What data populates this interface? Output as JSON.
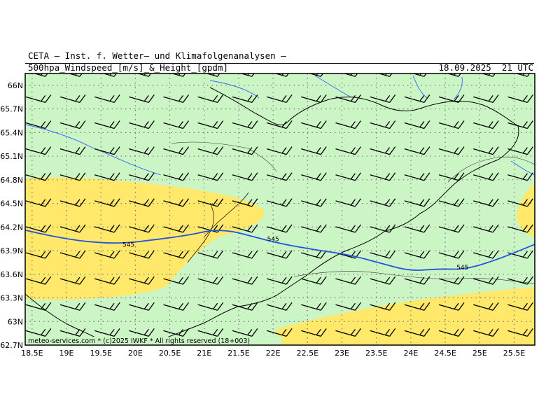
{
  "header": {
    "title": "CETA – Inst. f. Wetter– und Klimafolgenanalysen –",
    "subtitle": "500hpa_Windspeed_[m/s]_&_Height_[gpdm]",
    "valid_time": "18.09.2025  21 UTC"
  },
  "credit": "meteo-services.com * (c)2025 IWKF * All rights reserved (18+003)",
  "map": {
    "lon_range": [
      18.4,
      25.8
    ],
    "lat_range": [
      62.7,
      66.15
    ],
    "lon_ticks": [
      "18.5E",
      "19E",
      "19.5E",
      "20E",
      "20.5E",
      "21E",
      "21.5E",
      "22E",
      "22.5E",
      "23E",
      "23.5E",
      "24E",
      "24.5E",
      "25E",
      "25.5E"
    ],
    "lon_tick_values": [
      18.5,
      19,
      19.5,
      20,
      20.5,
      21,
      21.5,
      22,
      22.5,
      23,
      23.5,
      24,
      24.5,
      25,
      25.5
    ],
    "lat_ticks": [
      "66N",
      "65.7N",
      "65.4N",
      "65.1N",
      "64.8N",
      "64.5N",
      "64.2N",
      "63.9N",
      "63.6N",
      "63.3N",
      "63N",
      "62.7N"
    ],
    "lat_tick_values": [
      66,
      65.7,
      65.4,
      65.1,
      64.8,
      64.5,
      64.2,
      63.9,
      63.6,
      63.3,
      63,
      62.7
    ],
    "colors": {
      "background_wind": "#ccf5c5",
      "higher_wind": "#ffe86a",
      "height_contour": "#2255dd",
      "borders": "#000000",
      "rivers": "#3366ff",
      "grid": "#777777"
    },
    "contour_label": "545",
    "contour_label_positions": [
      [
        19.9,
        63.95
      ],
      [
        22.0,
        64.02
      ],
      [
        24.75,
        63.66
      ]
    ],
    "height_contour_545": [
      [
        18.4,
        64.16
      ],
      [
        18.8,
        64.08
      ],
      [
        19.3,
        64.01
      ],
      [
        19.8,
        63.99
      ],
      [
        20.3,
        64.04
      ],
      [
        20.8,
        64.1
      ],
      [
        21.1,
        64.16
      ],
      [
        21.4,
        64.15
      ],
      [
        21.7,
        64.08
      ],
      [
        22.1,
        63.99
      ],
      [
        22.6,
        63.91
      ],
      [
        23.1,
        63.85
      ],
      [
        23.6,
        63.73
      ],
      [
        24.0,
        63.64
      ],
      [
        24.4,
        63.67
      ],
      [
        24.8,
        63.66
      ],
      [
        25.3,
        63.8
      ],
      [
        25.8,
        63.98
      ]
    ],
    "barb_grid": {
      "lon_start": 18.55,
      "lon_step": 0.5,
      "lon_count": 15,
      "lat_start": 62.83,
      "lat_step": 0.33,
      "lat_count": 11,
      "direction_deg": 265
    }
  }
}
